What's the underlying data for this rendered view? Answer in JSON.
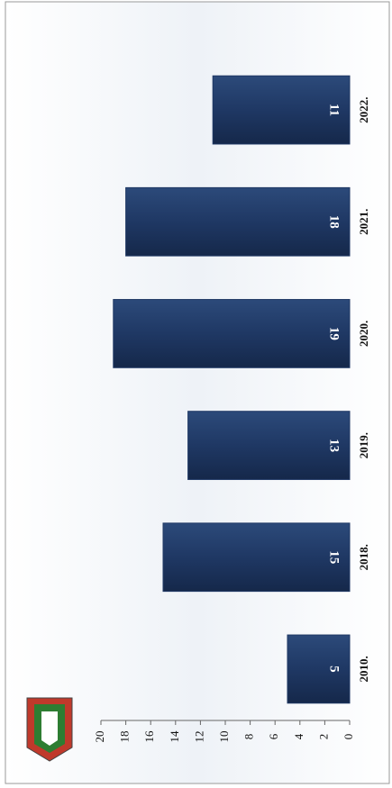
{
  "chart_data": {
    "type": "bar",
    "orientation": "horizontal",
    "categories": [
      "2010.",
      "2018.",
      "2019.",
      "2020.",
      "2021.",
      "2022."
    ],
    "values": [
      5,
      15,
      13,
      19,
      18,
      11
    ],
    "color": "#1f3864",
    "ylim": [
      0,
      20
    ],
    "yticks": [
      0,
      2,
      4,
      6,
      8,
      10,
      12,
      14,
      16,
      18,
      20
    ]
  }
}
